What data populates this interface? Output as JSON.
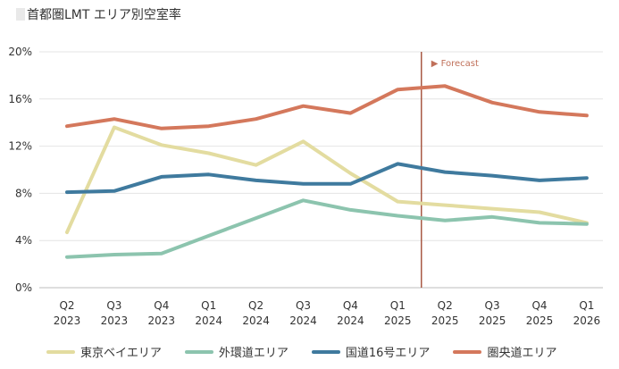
{
  "title": "首都圏LMT エリア別空室率",
  "chart_data": {
    "type": "line",
    "title": "首都圏LMT エリア別空室率",
    "categories": [
      "Q2 2023",
      "Q3 2023",
      "Q4 2023",
      "Q1 2024",
      "Q2 2024",
      "Q3 2024",
      "Q4 2024",
      "Q1 2025",
      "Q2 2025",
      "Q3 2025",
      "Q4 2025",
      "Q1 2026"
    ],
    "category_lines": [
      [
        "Q2",
        "2023"
      ],
      [
        "Q3",
        "2023"
      ],
      [
        "Q4",
        "2023"
      ],
      [
        "Q1",
        "2024"
      ],
      [
        "Q2",
        "2024"
      ],
      [
        "Q3",
        "2024"
      ],
      [
        "Q4",
        "2024"
      ],
      [
        "Q1",
        "2025"
      ],
      [
        "Q2",
        "2025"
      ],
      [
        "Q3",
        "2025"
      ],
      [
        "Q4",
        "2025"
      ],
      [
        "Q1",
        "2026"
      ]
    ],
    "y_ticks": [
      "0%",
      "4%",
      "8%",
      "12%",
      "16%",
      "20%"
    ],
    "ylim": [
      0,
      20
    ],
    "grid": true,
    "legend_position": "bottom",
    "forecast_label": "▶ Forecast",
    "forecast_between": [
      "Q1 2025",
      "Q2 2025"
    ],
    "series": [
      {
        "name": "東京ベイエリア",
        "color": "#e3dca0",
        "values": [
          4.7,
          13.6,
          12.1,
          11.4,
          10.4,
          12.4,
          9.7,
          7.3,
          7.0,
          6.7,
          6.4,
          5.5
        ]
      },
      {
        "name": "外環道エリア",
        "color": "#8cc4ae",
        "values": [
          2.6,
          2.8,
          2.9,
          4.4,
          5.9,
          7.4,
          6.6,
          6.1,
          5.7,
          6.0,
          5.5,
          5.4
        ]
      },
      {
        "name": "国道16号エリア",
        "color": "#3f7a9e",
        "values": [
          8.1,
          8.2,
          9.4,
          9.6,
          9.1,
          8.8,
          8.8,
          10.5,
          9.8,
          9.5,
          9.1,
          9.3
        ]
      },
      {
        "name": "圏央道エリア",
        "color": "#d4785c",
        "values": [
          13.7,
          14.3,
          13.5,
          13.7,
          14.3,
          15.4,
          14.8,
          16.8,
          17.1,
          15.7,
          14.9,
          14.6
        ]
      }
    ]
  }
}
